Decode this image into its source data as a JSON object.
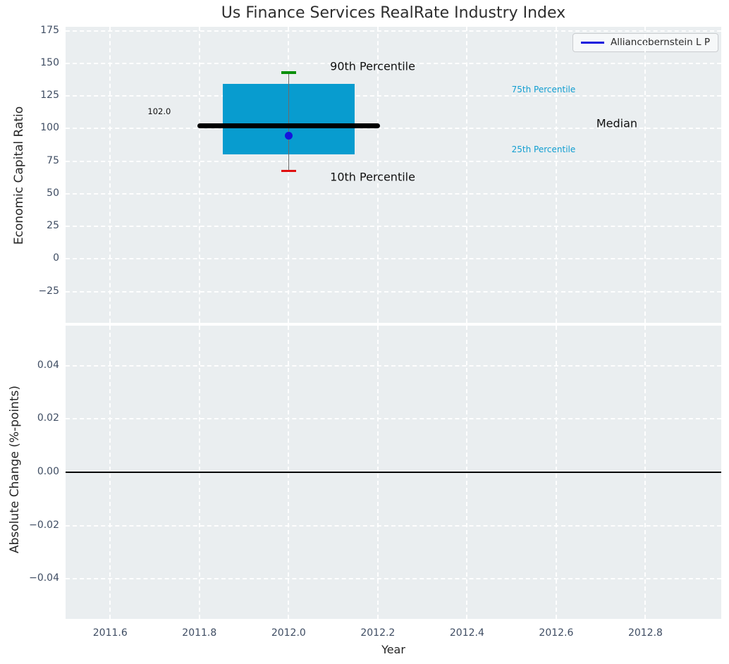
{
  "figure": {
    "title": "Us Finance Services RealRate Industry Index",
    "xlabel": "Year",
    "axes_background": "#eaeef0",
    "tick_color": "#3f4d63"
  },
  "legend": {
    "label": "Alliancebernstein L P",
    "line_color": "#1414dd"
  },
  "xaxis": {
    "lim": [
      2011.5,
      2012.97
    ],
    "ticks": [
      2011.6,
      2011.8,
      2012.0,
      2012.2,
      2012.4,
      2012.6,
      2012.8
    ],
    "ticklabels": [
      "2011.6",
      "2011.8",
      "2012.0",
      "2012.2",
      "2012.4",
      "2012.6",
      "2012.8"
    ]
  },
  "chart_data": [
    {
      "type": "boxplot",
      "title": "Us Finance Services RealRate Industry Index",
      "xlabel": "Year",
      "ylabel": "Economic Capital Ratio",
      "ylim": [
        -49,
        178
      ],
      "yticks": [
        175,
        150,
        125,
        100,
        75,
        50,
        25,
        0,
        -25
      ],
      "yticklabels": [
        "175",
        "150",
        "125",
        "100",
        "75",
        "50",
        "25",
        "0",
        "−25"
      ],
      "grid": true,
      "legend_position": "upper right",
      "box": {
        "x": 2012.0,
        "p10": 67.5,
        "p25": 80,
        "median": 102.0,
        "p75": 134,
        "p90": 143,
        "median_label": "102.0",
        "box_halfwidth_years": 0.148,
        "median_halfwidth_years": 0.205,
        "cap_halfwidth_years": 0.017,
        "box_color": "#089CCF",
        "median_color": "#000000",
        "p90_cap_color": "#0a8f0a",
        "p10_cap_color": "#e01010",
        "whisker_color": "#6b6b6b"
      },
      "series": [
        {
          "name": "Alliancebernstein L P",
          "x": 2012.0,
          "value": 94.5,
          "color": "#1414dd",
          "marker": "dot"
        }
      ],
      "annotations": [
        {
          "text": "90th Percentile",
          "x": 2012.093,
          "y": 148,
          "color": "#111111",
          "size": 16,
          "align": "left"
        },
        {
          "text": "10th Percentile",
          "x": 2012.093,
          "y": 63,
          "color": "#111111",
          "size": 16,
          "align": "left"
        },
        {
          "text": "75th Percentile",
          "x": 2012.5,
          "y": 130,
          "color": "#129ED1",
          "size": 12,
          "align": "left"
        },
        {
          "text": "25th Percentile",
          "x": 2012.5,
          "y": 84,
          "color": "#129ED1",
          "size": 12,
          "align": "left"
        },
        {
          "text": "Median",
          "x": 2012.69,
          "y": 104,
          "color": "#111111",
          "size": 16,
          "align": "left"
        },
        {
          "text": "102.0",
          "x": 2011.71,
          "y": 113,
          "color": "#111111",
          "size": 11.5,
          "align": "center"
        }
      ]
    },
    {
      "type": "line",
      "ylabel": "Absolute Change (%-points)",
      "ylim": [
        -0.055,
        0.055
      ],
      "yticks": [
        0.04,
        0.02,
        0.0,
        -0.02,
        -0.04
      ],
      "yticklabels": [
        "0.04",
        "0.02",
        "0.00",
        "−0.02",
        "−0.04"
      ],
      "grid": true,
      "zero_line": {
        "y": 0.0,
        "color": "#000000"
      },
      "series": []
    }
  ]
}
